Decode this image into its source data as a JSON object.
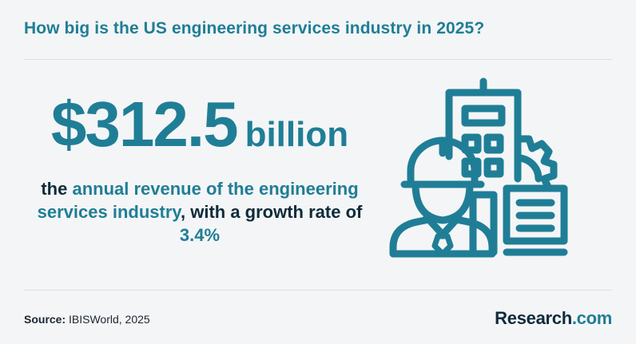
{
  "header": {
    "title": "How big is the US engineering services industry in 2025?"
  },
  "stat": {
    "amount": "$312.5",
    "unit": "billion"
  },
  "description": {
    "part1": "the ",
    "highlight1": "annual revenue of the engineering services industry",
    "part2": ", with a growth rate of ",
    "highlight2": "3.4%"
  },
  "illustration": {
    "icon": "engineer-with-building-and-gear-icon",
    "color": "#1f7e96"
  },
  "footer": {
    "source_label": "Source:",
    "source_value": " IBISWorld, 2025",
    "brand_main": "Research",
    "brand_suffix": ".com"
  },
  "colors": {
    "accent": "#1f7e96",
    "text_dark": "#0f2b3b",
    "background": "#f4f5f6"
  }
}
